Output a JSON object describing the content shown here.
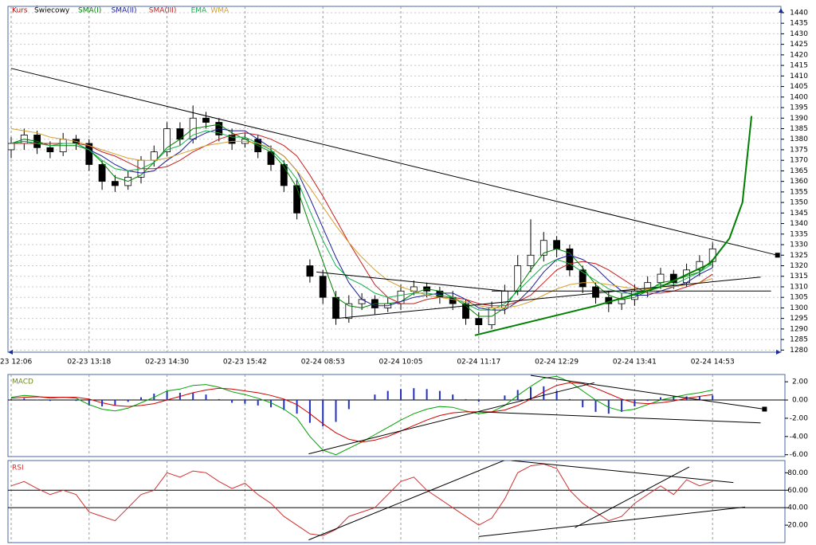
{
  "chart_data": [
    {
      "type": "candlestick",
      "title": "Kurs",
      "candle_name": "Świecowy",
      "categories": [
        "23 12:06",
        null,
        null,
        null,
        null,
        null,
        "02-23 13:18",
        null,
        null,
        null,
        null,
        null,
        "02-23 14:30",
        null,
        null,
        null,
        null,
        null,
        "02-23 15:42",
        null,
        null,
        null,
        null,
        null,
        "02-24 08:53",
        null,
        null,
        null,
        null,
        null,
        "02-24 10:05",
        null,
        null,
        null,
        null,
        null,
        "02-24 11:17",
        null,
        null,
        null,
        null,
        null,
        "02-24 12:29",
        null,
        null,
        null,
        null,
        null,
        "02-24 13:41",
        null,
        null,
        null,
        null,
        null,
        "02-24 14:53"
      ],
      "open": [
        1375,
        1378,
        1382,
        1376,
        1374,
        1380,
        1378,
        1368,
        1360,
        1358,
        1362,
        1370,
        1374,
        1385,
        1380,
        1390,
        1388,
        1382,
        1378,
        1380,
        1374,
        1368,
        1358,
        1320,
        1315,
        1305,
        1295,
        1302,
        1304,
        1300,
        1302,
        1308,
        1310,
        1308,
        1305,
        1302,
        1295,
        1292,
        1300,
        1308,
        1320,
        1325,
        1332,
        1328,
        1318,
        1310,
        1305,
        1302,
        1304,
        1308,
        1312,
        1316,
        1312,
        1318,
        1322
      ],
      "high": [
        1381,
        1385,
        1384,
        1379,
        1383,
        1382,
        1380,
        1370,
        1363,
        1365,
        1372,
        1377,
        1388,
        1388,
        1396,
        1393,
        1390,
        1385,
        1383,
        1382,
        1377,
        1370,
        1361,
        1323,
        1318,
        1308,
        1306,
        1307,
        1306,
        1305,
        1311,
        1313,
        1312,
        1310,
        1308,
        1304,
        1298,
        1303,
        1311,
        1325,
        1342,
        1336,
        1334,
        1330,
        1320,
        1312,
        1308,
        1307,
        1311,
        1315,
        1319,
        1318,
        1321,
        1325,
        1331
      ],
      "low": [
        1371,
        1375,
        1373,
        1371,
        1372,
        1375,
        1365,
        1356,
        1355,
        1356,
        1359,
        1367,
        1372,
        1377,
        1378,
        1385,
        1379,
        1375,
        1376,
        1371,
        1365,
        1355,
        1342,
        1312,
        1302,
        1292,
        1293,
        1299,
        1297,
        1298,
        1299,
        1306,
        1305,
        1302,
        1299,
        1292,
        1288,
        1290,
        1297,
        1306,
        1317,
        1322,
        1324,
        1315,
        1307,
        1302,
        1298,
        1299,
        1301,
        1305,
        1309,
        1309,
        1310,
        1315,
        1319
      ],
      "close": [
        1378,
        1382,
        1376,
        1374,
        1380,
        1378,
        1368,
        1360,
        1358,
        1362,
        1370,
        1374,
        1385,
        1380,
        1390,
        1388,
        1382,
        1378,
        1380,
        1374,
        1368,
        1358,
        1345,
        1315,
        1305,
        1295,
        1302,
        1304,
        1300,
        1302,
        1308,
        1310,
        1308,
        1305,
        1302,
        1295,
        1292,
        1300,
        1308,
        1320,
        1325,
        1332,
        1328,
        1318,
        1310,
        1305,
        1302,
        1304,
        1308,
        1312,
        1316,
        1312,
        1318,
        1322,
        1328
      ],
      "overlays": [
        {
          "name": "SMA(I)",
          "color": "#008000",
          "values": [
            1378,
            1380,
            1379,
            1377,
            1377,
            1377,
            1375,
            1369,
            1362,
            1360,
            1363,
            1369,
            1376,
            1380,
            1385,
            1386,
            1387,
            1383,
            1380,
            1377,
            1374,
            1367,
            1357,
            1339,
            1322,
            1305,
            1301,
            1300,
            1302,
            1302,
            1303,
            1307,
            1309,
            1308,
            1305,
            1301,
            1296,
            1296,
            1300,
            1309,
            1318,
            1326,
            1328,
            1326,
            1319,
            1311,
            1306,
            1304,
            1305,
            1308,
            1312,
            1313,
            1315,
            1317,
            1323
          ]
        },
        {
          "name": "SMA(II)",
          "color": "#1a1a9a",
          "values": [
            1378,
            1379,
            1378,
            1378,
            1378,
            1378,
            1375,
            1372,
            1368,
            1365,
            1364,
            1365,
            1370,
            1374,
            1380,
            1383,
            1385,
            1384,
            1384,
            1380,
            1376,
            1372,
            1365,
            1352,
            1338,
            1324,
            1312,
            1304,
            1301,
            1301,
            1303,
            1305,
            1306,
            1307,
            1307,
            1304,
            1300,
            1299,
            1299,
            1303,
            1309,
            1317,
            1323,
            1325,
            1323,
            1319,
            1313,
            1308,
            1306,
            1306,
            1308,
            1310,
            1312,
            1316,
            1319
          ]
        },
        {
          "name": "SMA(III)",
          "color": "#c81e1e",
          "values": [
            1378,
            1378,
            1378,
            1378,
            1378,
            1378,
            1377,
            1374,
            1372,
            1369,
            1366,
            1366,
            1367,
            1370,
            1374,
            1377,
            1380,
            1382,
            1383,
            1382,
            1380,
            1377,
            1372,
            1363,
            1353,
            1342,
            1331,
            1321,
            1311,
            1305,
            1302,
            1302,
            1304,
            1305,
            1305,
            1304,
            1302,
            1301,
            1301,
            1303,
            1306,
            1312,
            1318,
            1321,
            1322,
            1321,
            1318,
            1314,
            1310,
            1307,
            1307,
            1308,
            1310,
            1312,
            1316
          ]
        },
        {
          "name": "EMA",
          "color": "#12b04a",
          "values": [
            1378,
            1379,
            1378,
            1377,
            1378,
            1378,
            1375,
            1370,
            1366,
            1365,
            1366,
            1369,
            1375,
            1377,
            1382,
            1384,
            1383,
            1381,
            1381,
            1378,
            1375,
            1369,
            1361,
            1346,
            1332,
            1320,
            1314,
            1311,
            1307,
            1305,
            1306,
            1307,
            1307,
            1306,
            1305,
            1302,
            1299,
            1299,
            1302,
            1308,
            1314,
            1320,
            1323,
            1321,
            1317,
            1313,
            1309,
            1307,
            1307,
            1309,
            1311,
            1311,
            1314,
            1317,
            1321
          ]
        },
        {
          "name": "WMA",
          "color": "#d4a030",
          "values": [
            1385,
            1384,
            1383,
            1381,
            1380,
            1379,
            1377,
            1375,
            1373,
            1371,
            1370,
            1370,
            1371,
            1373,
            1375,
            1377,
            1378,
            1379,
            1379,
            1378,
            1376,
            1372,
            1365,
            1357,
            1348,
            1339,
            1331,
            1324,
            1318,
            1313,
            1310,
            1308,
            1306,
            1305,
            1304,
            1303,
            1301,
            1300,
            1300,
            1301,
            1303,
            1306,
            1309,
            1311,
            1312,
            1312,
            1311,
            1310,
            1309,
            1309,
            1310,
            1310,
            1311,
            1312,
            1314
          ]
        }
      ],
      "ylim": [
        1279,
        1443
      ],
      "yticks": [
        1280,
        1285,
        1290,
        1295,
        1300,
        1305,
        1310,
        1315,
        1320,
        1325,
        1330,
        1335,
        1340,
        1345,
        1350,
        1355,
        1360,
        1365,
        1370,
        1375,
        1380,
        1385,
        1390,
        1395,
        1400,
        1405,
        1410,
        1415,
        1420,
        1425,
        1430,
        1435,
        1440
      ],
      "grid": true,
      "trendlines": [
        {
          "color": "#000000",
          "x": [
            0,
            59
          ],
          "y": [
            1413.6,
            1325
          ],
          "end_marker": true
        },
        {
          "color": "#000000",
          "x": [
            25,
            57.7
          ],
          "y": [
            1295,
            1314.6
          ]
        },
        {
          "color": "#000000",
          "x": [
            23.5,
            38
          ],
          "y": [
            1317,
            1308
          ]
        },
        {
          "color": "#000000",
          "x": [
            37,
            58.5
          ],
          "y": [
            1308,
            1308
          ]
        },
        {
          "color": "#008000",
          "x": [
            35.7,
            45,
            50,
            53.8,
            55.3,
            56.3,
            57
          ],
          "y": [
            1287,
            1301,
            1310,
            1321,
            1333,
            1350,
            1391
          ]
        }
      ]
    },
    {
      "type": "macd",
      "title": "MACD",
      "lines": [
        {
          "color": "#00a000",
          "values": [
            0.3,
            0.5,
            0.4,
            0.2,
            0.3,
            0.2,
            -0.5,
            -1.0,
            -1.2,
            -0.9,
            -0.3,
            0.3,
            1.0,
            1.2,
            1.6,
            1.7,
            1.4,
            0.9,
            0.6,
            0.2,
            -0.3,
            -1.0,
            -2.0,
            -4.0,
            -5.5,
            -6.0,
            -5.3,
            -4.6,
            -3.8,
            -3.0,
            -2.2,
            -1.5,
            -1.0,
            -0.7,
            -0.8,
            -1.2,
            -1.5,
            -1.3,
            -0.6,
            0.5,
            1.5,
            2.4,
            2.6,
            2.0,
            1.0,
            0.0,
            -0.8,
            -1.2,
            -1.0,
            -0.5,
            0.0,
            0.3,
            0.6,
            0.8,
            1.1
          ]
        },
        {
          "color": "#d00000",
          "values": [
            0.2,
            0.3,
            0.35,
            0.3,
            0.3,
            0.3,
            0.1,
            -0.3,
            -0.6,
            -0.7,
            -0.6,
            -0.4,
            0.0,
            0.4,
            0.8,
            1.1,
            1.3,
            1.2,
            1.0,
            0.8,
            0.5,
            0.1,
            -0.5,
            -1.5,
            -2.6,
            -3.6,
            -4.3,
            -4.6,
            -4.4,
            -4.0,
            -3.4,
            -2.8,
            -2.2,
            -1.7,
            -1.4,
            -1.3,
            -1.3,
            -1.3,
            -1.1,
            -0.6,
            0.1,
            0.9,
            1.6,
            1.9,
            1.8,
            1.3,
            0.7,
            0.1,
            -0.3,
            -0.4,
            -0.3,
            -0.1,
            0.2,
            0.4,
            0.6
          ]
        }
      ],
      "histogram": {
        "color": "#2030c0",
        "values": [
          0.1,
          0.2,
          0.05,
          -0.1,
          0.0,
          -0.1,
          -0.6,
          -0.7,
          -0.6,
          -0.2,
          0.3,
          0.7,
          1.0,
          0.8,
          0.8,
          0.6,
          0.1,
          -0.3,
          -0.4,
          -0.6,
          -0.8,
          -1.1,
          -1.5,
          -2.5,
          -2.9,
          -2.4,
          -1.0,
          0.0,
          0.6,
          1.0,
          1.2,
          1.3,
          1.2,
          1.0,
          0.6,
          0.1,
          -0.2,
          0.0,
          0.5,
          1.1,
          1.4,
          1.5,
          1.0,
          0.1,
          -0.8,
          -1.3,
          -1.5,
          -1.3,
          -0.7,
          -0.1,
          0.3,
          0.4,
          0.4,
          0.4,
          0.5
        ]
      },
      "ylim": [
        -6.2,
        2.8
      ],
      "yticks": [
        {
          "value": 2,
          "label": "2.00"
        },
        {
          "value": 0,
          "label": "0.00"
        },
        {
          "value": -2,
          "label": "-2.00"
        },
        {
          "value": -4,
          "label": "-4.00"
        },
        {
          "value": -6,
          "label": "-6.00"
        }
      ],
      "trendlines": [
        {
          "color": "#000000",
          "x": [
            22.9,
            44.9
          ],
          "y": [
            -5.9,
            1.9
          ]
        },
        {
          "color": "#000000",
          "x": [
            40,
            58
          ],
          "y": [
            2.7,
            -1.0
          ],
          "end_marker": true
        },
        {
          "color": "#000000",
          "x": [
            36,
            57.7
          ],
          "y": [
            -1.3,
            -2.5
          ]
        }
      ]
    },
    {
      "type": "line",
      "title": "RSI",
      "series": [
        {
          "color": "#d03030",
          "values": [
            65,
            70,
            62,
            55,
            60,
            55,
            35,
            30,
            25,
            40,
            55,
            60,
            80,
            75,
            82,
            80,
            70,
            62,
            68,
            55,
            45,
            30,
            20,
            10,
            8,
            15,
            30,
            35,
            40,
            55,
            70,
            75,
            60,
            50,
            40,
            30,
            20,
            28,
            50,
            80,
            88,
            90,
            85,
            60,
            45,
            35,
            25,
            30,
            45,
            55,
            65,
            55,
            72,
            65,
            70
          ]
        }
      ],
      "levels": [
        60,
        40
      ],
      "ylim": [
        0,
        94
      ],
      "yticks": [
        {
          "value": 80,
          "label": "80.00"
        },
        {
          "value": 60,
          "label": "60.00"
        },
        {
          "value": 40,
          "label": "40.00"
        },
        {
          "value": 20,
          "label": "20.00"
        }
      ],
      "trendlines": [
        {
          "color": "#000000",
          "x": [
            22.9,
            38.1
          ],
          "y": [
            3.1,
            95
          ]
        },
        {
          "color": "#000000",
          "x": [
            38.5,
            55.6
          ],
          "y": [
            94,
            68.8
          ]
        },
        {
          "color": "#000000",
          "x": [
            36,
            56.5
          ],
          "y": [
            6.9,
            40.7
          ]
        },
        {
          "color": "#000000",
          "x": [
            43.4,
            52.2
          ],
          "y": [
            17.2,
            86.6
          ]
        }
      ]
    }
  ]
}
